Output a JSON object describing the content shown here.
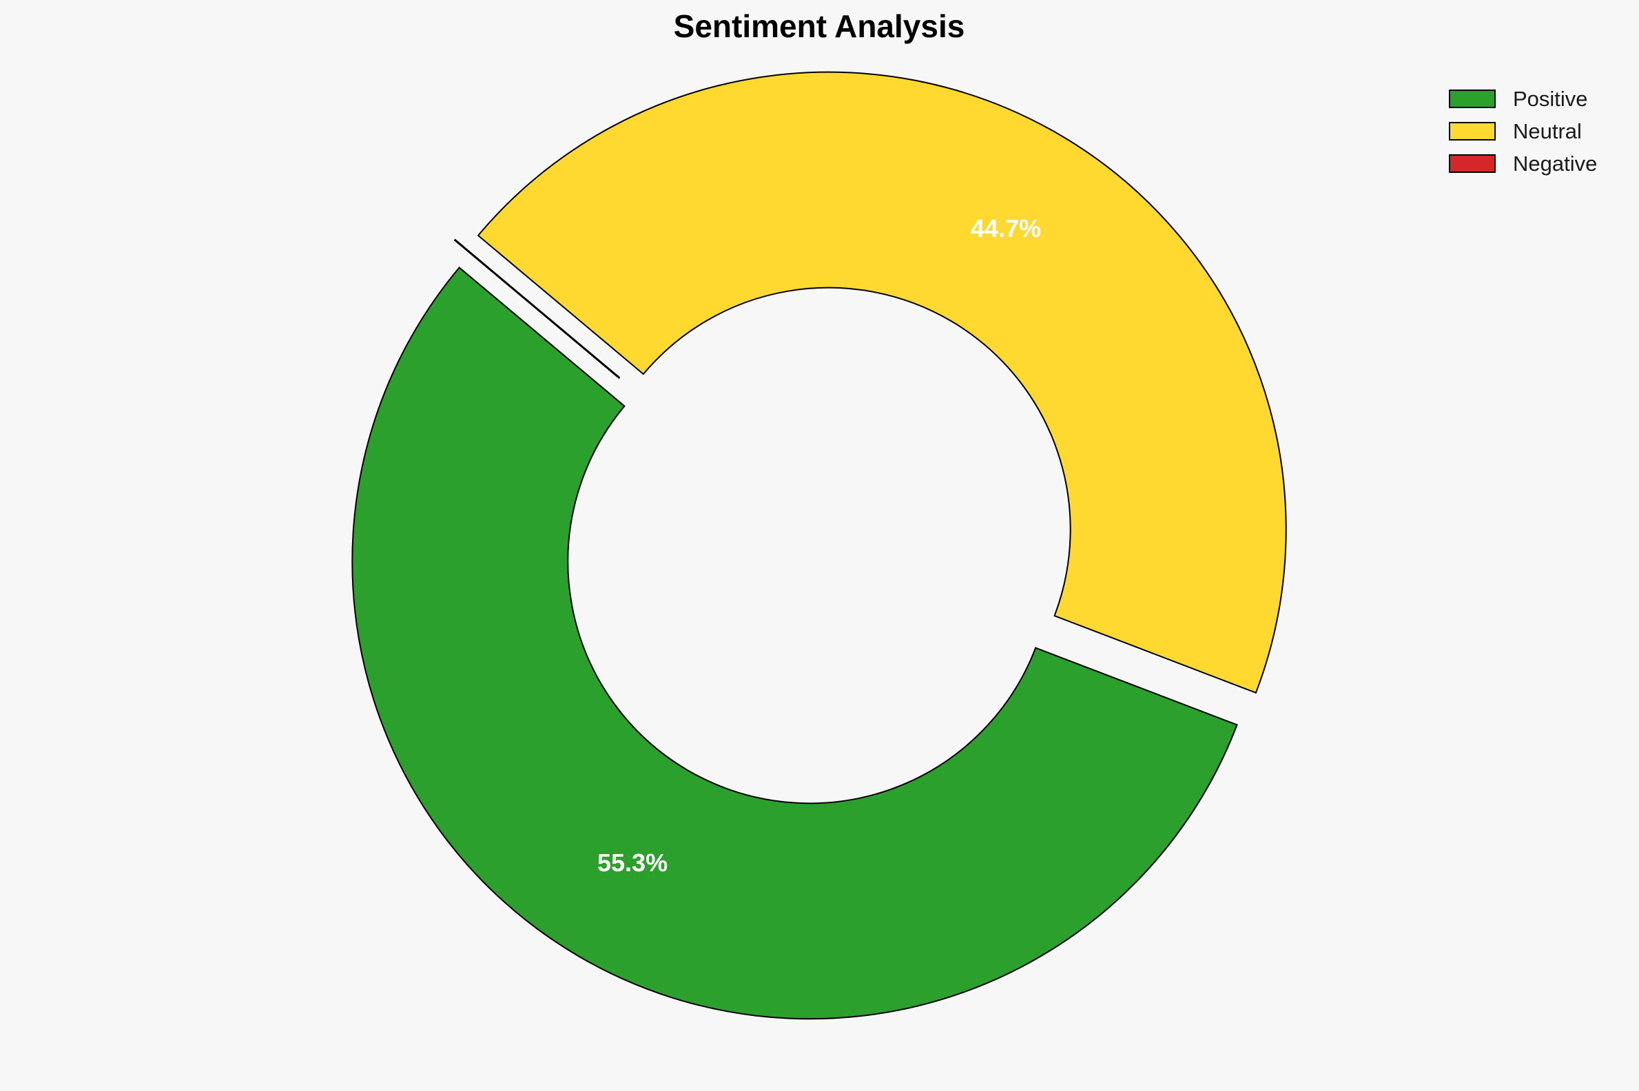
{
  "chart_data": {
    "type": "pie",
    "variant": "donut",
    "title": "Sentiment Analysis",
    "categories": [
      "Positive",
      "Neutral",
      "Negative"
    ],
    "values": [
      55.3,
      44.7,
      0.0
    ],
    "value_labels": [
      "55.3%",
      "44.7%",
      ""
    ],
    "colors": [
      "#2ca02c",
      "#ffd92f",
      "#d62728"
    ],
    "exploded": true,
    "legend": {
      "placement": "top-right",
      "entries": [
        "Positive",
        "Neutral",
        "Negative"
      ]
    }
  }
}
